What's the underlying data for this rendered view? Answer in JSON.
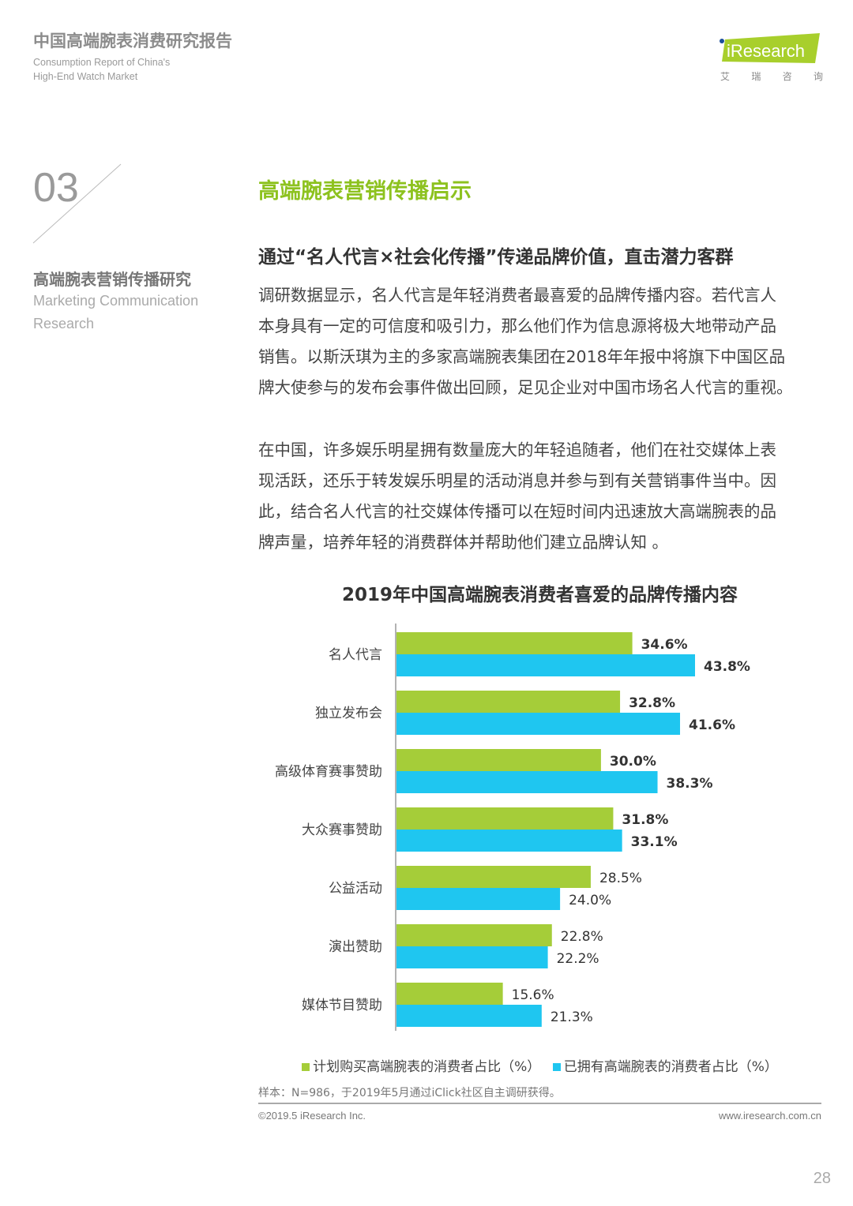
{
  "header": {
    "report_title": "中国高端腕表消费研究报告",
    "subtitle_lines": [
      "Consumption Report of China's",
      "High-End Watch Market"
    ],
    "logo_text": "iResearch",
    "logo_cn": [
      "艾",
      "瑞",
      "咨",
      "询"
    ]
  },
  "section": {
    "number": "03",
    "title_cn": "高端腕表营销传播研究",
    "title_en_lines": [
      "Marketing Communication",
      "Research"
    ]
  },
  "main": {
    "title": "高端腕表营销传播启示",
    "subheading": "通过“名人代言×社会化传播”传递品牌价值，直击潜力客群",
    "para1": [
      "调研数据显示，名人代言是年轻消费者最喜爱的品牌传播内容。若代言人",
      "本身具有一定的可信度和吸引力，那么他们作为信息源将极大地带动产品",
      "销售。以斯沃琪为主的多家高端腕表集团在2018年年报中将旗下中国区品",
      "牌大使参与的发布会事件做出回顾，足见企业对中国市场名人代言的重视。"
    ],
    "para2": [
      "在中国，许多娱乐明星拥有数量庞大的年轻追随者，他们在社交媒体上表",
      "现活跃，还乐于转发娱乐明星的活动消息并参与到有关营销事件当中。因",
      "此，结合名人代言的社交媒体传播可以在短时间内迅速放大高端腕表的品",
      "牌声量，培养年轻的消费群体并帮助他们建立品牌认知 。"
    ]
  },
  "chart_data": {
    "type": "bar",
    "orientation": "horizontal",
    "title": "2019年中国高端腕表消费者喜爱的品牌传播内容",
    "categories": [
      "名人代言",
      "独立发布会",
      "高级体育赛事赞助",
      "大众赛事赞助",
      "公益活动",
      "演出赞助",
      "媒体节目赞助"
    ],
    "series": [
      {
        "name": "计划购买高端腕表的消费者占比（%）",
        "color": "#a5cd39",
        "values": [
          34.6,
          32.8,
          30.0,
          31.8,
          28.5,
          22.8,
          15.6
        ]
      },
      {
        "name": "已拥有高端腕表的消费者占比（%）",
        "color": "#1fc6f0",
        "values": [
          43.8,
          41.6,
          38.3,
          33.1,
          24.0,
          22.2,
          21.3
        ]
      }
    ],
    "value_labels": [
      [
        "34.6%",
        "32.8%",
        "30.0%",
        "31.8%",
        "28.5%",
        "22.8%",
        "15.6%"
      ],
      [
        "43.8%",
        "41.6%",
        "38.3%",
        "33.1%",
        "24.0%",
        "22.2%",
        "21.3%"
      ]
    ],
    "xlim": [
      0,
      45
    ],
    "legend": "bottom"
  },
  "footer": {
    "note": "样本：N=986，于2019年5月通过iClick社区自主调研获得。",
    "copyright": "©2019.5 iResearch Inc.",
    "url": "www.iresearch.com.cn",
    "page": "28"
  },
  "colors": {
    "brand_green": "#8dc21f"
  }
}
